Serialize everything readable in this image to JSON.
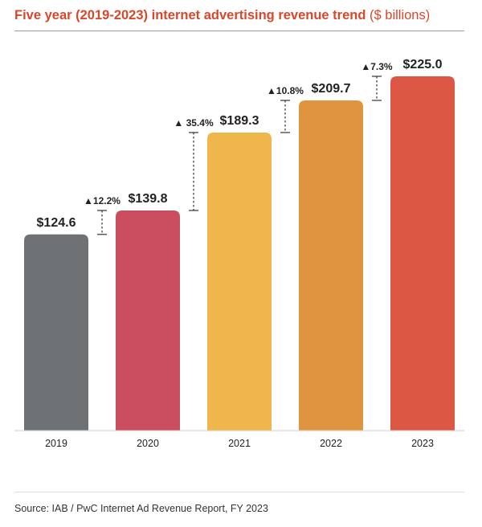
{
  "header": {
    "title_bold": "Five year (2019-2023) internet advertising revenue trend",
    "title_light": "($ billions)"
  },
  "footer": {
    "source": "Source:  IAB / PwC Internet Ad Revenue Report, FY 2023"
  },
  "chart_data": {
    "type": "bar",
    "title": "Five year (2019-2023) internet advertising revenue trend ($ billions)",
    "categories": [
      "2019",
      "2020",
      "2021",
      "2022",
      "2023"
    ],
    "values": [
      124.6,
      139.8,
      189.3,
      209.7,
      225.0
    ],
    "value_labels": [
      "$124.6",
      "$139.8",
      "$189.3",
      "$209.7",
      "$225.0"
    ],
    "growth_labels": [
      "▲12.2%",
      "▲ 35.4%",
      "▲10.8%",
      "▲7.3%"
    ],
    "bar_colors": [
      "#6f7275",
      "#cb4e60",
      "#efb64b",
      "#e09440",
      "#dd5844"
    ],
    "xlabel": "",
    "ylabel": "",
    "ylim": [
      0,
      225
    ],
    "grid": false,
    "legend": "none"
  }
}
